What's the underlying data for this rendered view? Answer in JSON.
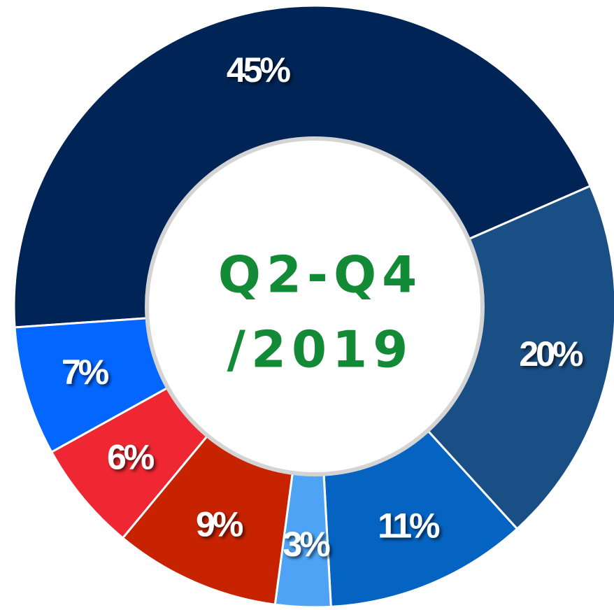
{
  "chart_data": {
    "type": "donut",
    "center_text": [
      "Q2-Q4",
      "/2019"
    ],
    "values": [
      45,
      20,
      11,
      3,
      9,
      6,
      7
    ],
    "value_labels": [
      "45%",
      "20%",
      "11%",
      "3%",
      "9%",
      "6%",
      "7%"
    ],
    "colors": [
      "#002456",
      "#1a4f86",
      "#0563c1",
      "#4ea3f5",
      "#c72300",
      "#ee2732",
      "#0366ff"
    ]
  }
}
